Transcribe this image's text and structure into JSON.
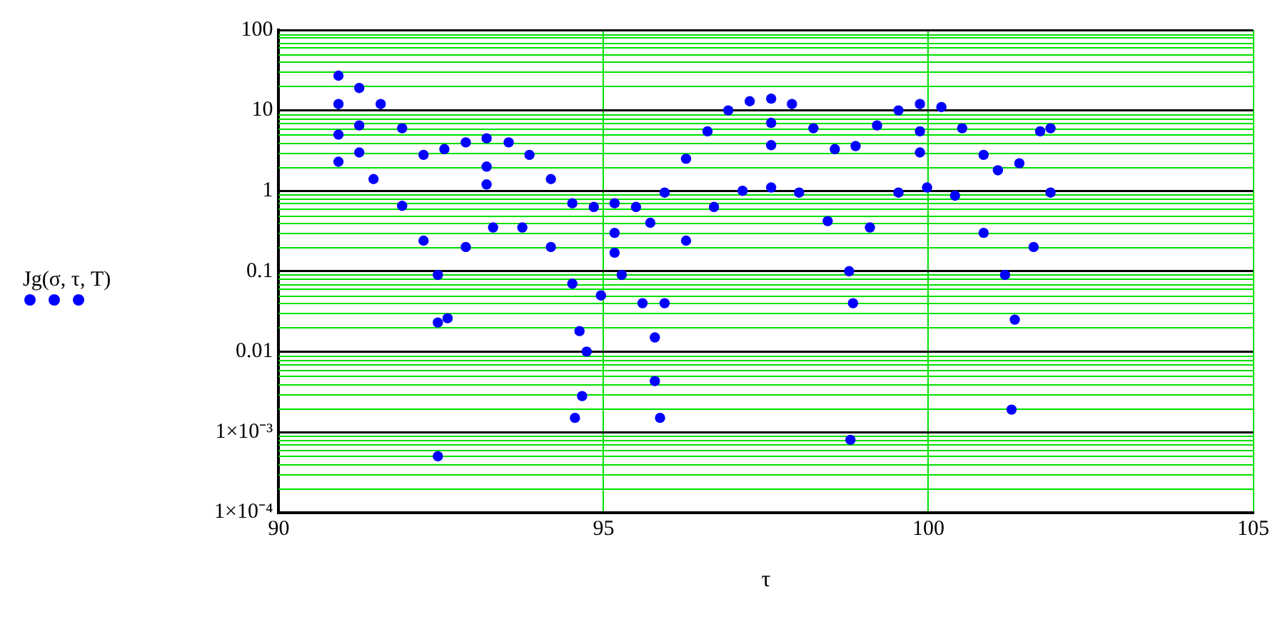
{
  "chart_data": {
    "type": "scatter",
    "xlabel": "τ",
    "xlim": [
      90,
      105
    ],
    "xticks": [
      90,
      95,
      100,
      105
    ],
    "ylim": [
      0.0001,
      100
    ],
    "yticks": [
      {
        "value": 0.0001,
        "label": "1×10⁻⁴"
      },
      {
        "value": 0.001,
        "label": "1×10⁻³"
      },
      0.01,
      0.1,
      1,
      10,
      100
    ],
    "log": "y",
    "grid": true,
    "legend": "left",
    "marker": "circle",
    "series": [
      {
        "name": "Jg(σ, τ, T)",
        "color": "#0000ff",
        "x": [
          90.92,
          91.24,
          91.57,
          91.9,
          92.23,
          92.55,
          92.88,
          93.2,
          93.54,
          93.86,
          94.19,
          94.52,
          94.85,
          95.17,
          95.5,
          95.72,
          95.94,
          96.27,
          96.6,
          96.92,
          97.25,
          97.58,
          97.9,
          98.23,
          98.56,
          98.88,
          99.21,
          99.54,
          99.87,
          100.2,
          100.52,
          100.85,
          101.07,
          101.4,
          101.72,
          101.88,
          90.92,
          91.46,
          91.9,
          92.23,
          92.45,
          92.45,
          92.6,
          92.88,
          93.3,
          93.75,
          94.19,
          94.52,
          94.63,
          94.74,
          94.96,
          95.28,
          95.6,
          95.79,
          95.94,
          96.27,
          96.7,
          97.14,
          97.58,
          98.01,
          98.45,
          98.78,
          98.84,
          99.1,
          99.54,
          99.98,
          100.41,
          100.85,
          101.18,
          101.33,
          101.62,
          101.88,
          92.45,
          94.56,
          94.67,
          95.79,
          95.87,
          98.8,
          101.28,
          93.2,
          93.2,
          97.58,
          97.58,
          99.87,
          99.87,
          95.17,
          95.17,
          91.24,
          91.24,
          90.92,
          90.92
        ],
        "values": [
          27,
          19,
          12,
          6,
          2.8,
          3.3,
          4,
          4.5,
          4,
          2.8,
          1.4,
          0.7,
          0.63,
          0.7,
          0.63,
          0.4,
          0.95,
          2.5,
          5.5,
          10,
          13,
          14,
          12,
          6,
          3.3,
          3.6,
          6.5,
          10,
          12,
          11,
          6,
          2.8,
          1.8,
          2.2,
          5.5,
          6,
          2.3,
          1.4,
          0.65,
          0.24,
          0.09,
          0.023,
          0.026,
          0.2,
          0.35,
          0.35,
          0.2,
          0.07,
          0.018,
          0.01,
          0.05,
          0.09,
          0.04,
          0.015,
          0.04,
          0.24,
          0.63,
          1,
          1.1,
          0.95,
          0.42,
          0.1,
          0.04,
          0.35,
          0.95,
          1.1,
          0.87,
          0.3,
          0.09,
          0.025,
          0.2,
          0.95,
          0.0005,
          0.0015,
          0.0028,
          0.0043,
          0.0015,
          0.0008,
          0.0019,
          2,
          1.2,
          7,
          3.7,
          5.5,
          3,
          0.3,
          0.17,
          6.5,
          3,
          12,
          5
        ]
      }
    ]
  }
}
